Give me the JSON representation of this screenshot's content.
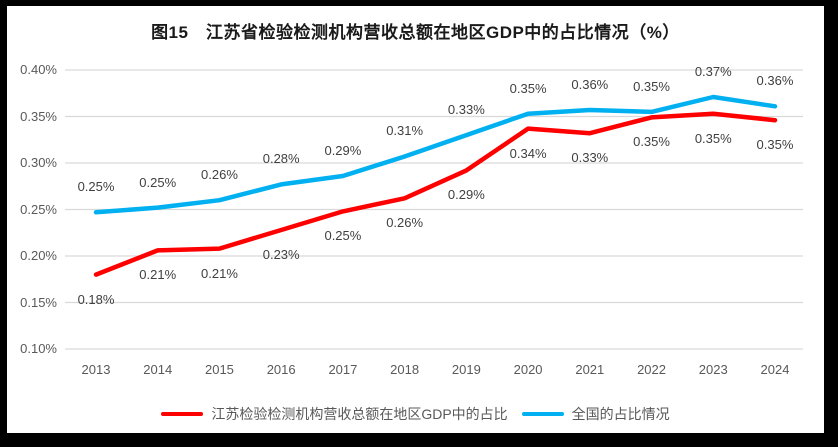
{
  "chart_data": {
    "type": "line",
    "title": "图15　江苏省检验检测机构营收总额在地区GDP中的占比情况（%）",
    "categories": [
      "2013",
      "2014",
      "2015",
      "2016",
      "2017",
      "2018",
      "2019",
      "2020",
      "2021",
      "2022",
      "2023",
      "2024"
    ],
    "y_axis": {
      "min": 0.1,
      "max": 0.4,
      "step": 0.05,
      "ticks": [
        "0.40%",
        "0.35%",
        "0.30%",
        "0.25%",
        "0.20%",
        "0.15%",
        "0.10%"
      ],
      "unit": "%"
    },
    "grid": true,
    "legend_position": "bottom",
    "series": [
      {
        "id": "jiangsu",
        "name": "江苏检验检测机构营收总额在地区GDP中的占比",
        "color": "#ff0000",
        "values": [
          0.18,
          0.21,
          0.21,
          0.23,
          0.25,
          0.26,
          0.29,
          0.34,
          0.33,
          0.35,
          0.35,
          0.35
        ],
        "labels": [
          "0.18%",
          "0.21%",
          "0.21%",
          "0.23%",
          "0.25%",
          "0.26%",
          "0.29%",
          "0.34%",
          "0.33%",
          "0.35%",
          "0.35%",
          "0.35%"
        ],
        "values_plotted": [
          0.18,
          0.206,
          0.208,
          0.228,
          0.248,
          0.262,
          0.292,
          0.337,
          0.332,
          0.349,
          0.353,
          0.346
        ],
        "label_position": "below"
      },
      {
        "id": "national",
        "name": "全国的占比情况",
        "color": "#00b0f0",
        "values": [
          0.25,
          0.25,
          0.26,
          0.28,
          0.29,
          0.31,
          0.33,
          0.35,
          0.36,
          0.35,
          0.37,
          0.36
        ],
        "labels": [
          "0.25%",
          "0.25%",
          "0.26%",
          "0.28%",
          "0.29%",
          "0.31%",
          "0.33%",
          "0.35%",
          "0.36%",
          "0.35%",
          "0.37%",
          "0.36%"
        ],
        "values_plotted": [
          0.247,
          0.252,
          0.26,
          0.277,
          0.286,
          0.307,
          0.33,
          0.353,
          0.357,
          0.355,
          0.371,
          0.361
        ],
        "label_position": "above"
      }
    ],
    "colors": {
      "gridline": "#d9d9d9",
      "axis_text": "#595959",
      "data_label_text": "#404040",
      "title_text": "#1a1a1a",
      "background": "#ffffff",
      "frame": "#000000"
    }
  }
}
